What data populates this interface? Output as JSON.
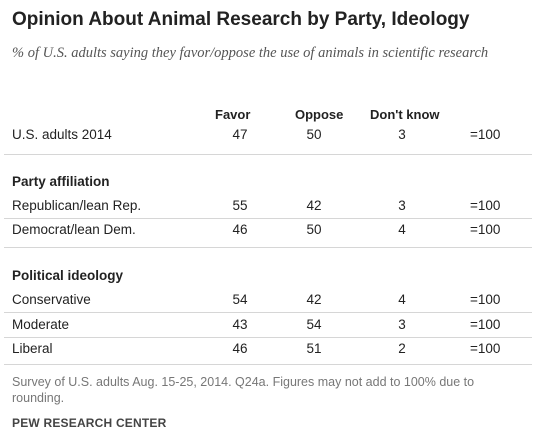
{
  "chart_data": {
    "type": "table",
    "title": "Opinion About Animal Research by Party, Ideology",
    "subtitle": "% of U.S. adults saying they favor/oppose the use of animals in scientific research",
    "columns": [
      "Favor",
      "Oppose",
      "Don't know"
    ],
    "rows": [
      {
        "group": "",
        "label": "U.S. adults 2014",
        "favor": 47,
        "oppose": 50,
        "dont_know": 3,
        "total": "=100"
      },
      {
        "group": "Party affiliation",
        "label": "Republican/lean Rep.",
        "favor": 55,
        "oppose": 42,
        "dont_know": 3,
        "total": "=100"
      },
      {
        "group": "Party affiliation",
        "label": "Democrat/lean Dem.",
        "favor": 46,
        "oppose": 50,
        "dont_know": 4,
        "total": "=100"
      },
      {
        "group": "Political ideology",
        "label": "Conservative",
        "favor": 54,
        "oppose": 42,
        "dont_know": 4,
        "total": "=100"
      },
      {
        "group": "Political ideology",
        "label": "Moderate",
        "favor": 43,
        "oppose": 54,
        "dont_know": 3,
        "total": "=100"
      },
      {
        "group": "Political ideology",
        "label": "Liberal",
        "favor": 46,
        "oppose": 51,
        "dont_know": 2,
        "total": "=100"
      }
    ],
    "sections": {
      "party": "Party affiliation",
      "ideology": "Political ideology"
    },
    "note": "Survey of U.S. adults Aug. 15-25, 2014. Q24a. Figures may not add to 100% due to rounding.",
    "source": "PEW RESEARCH CENTER"
  }
}
